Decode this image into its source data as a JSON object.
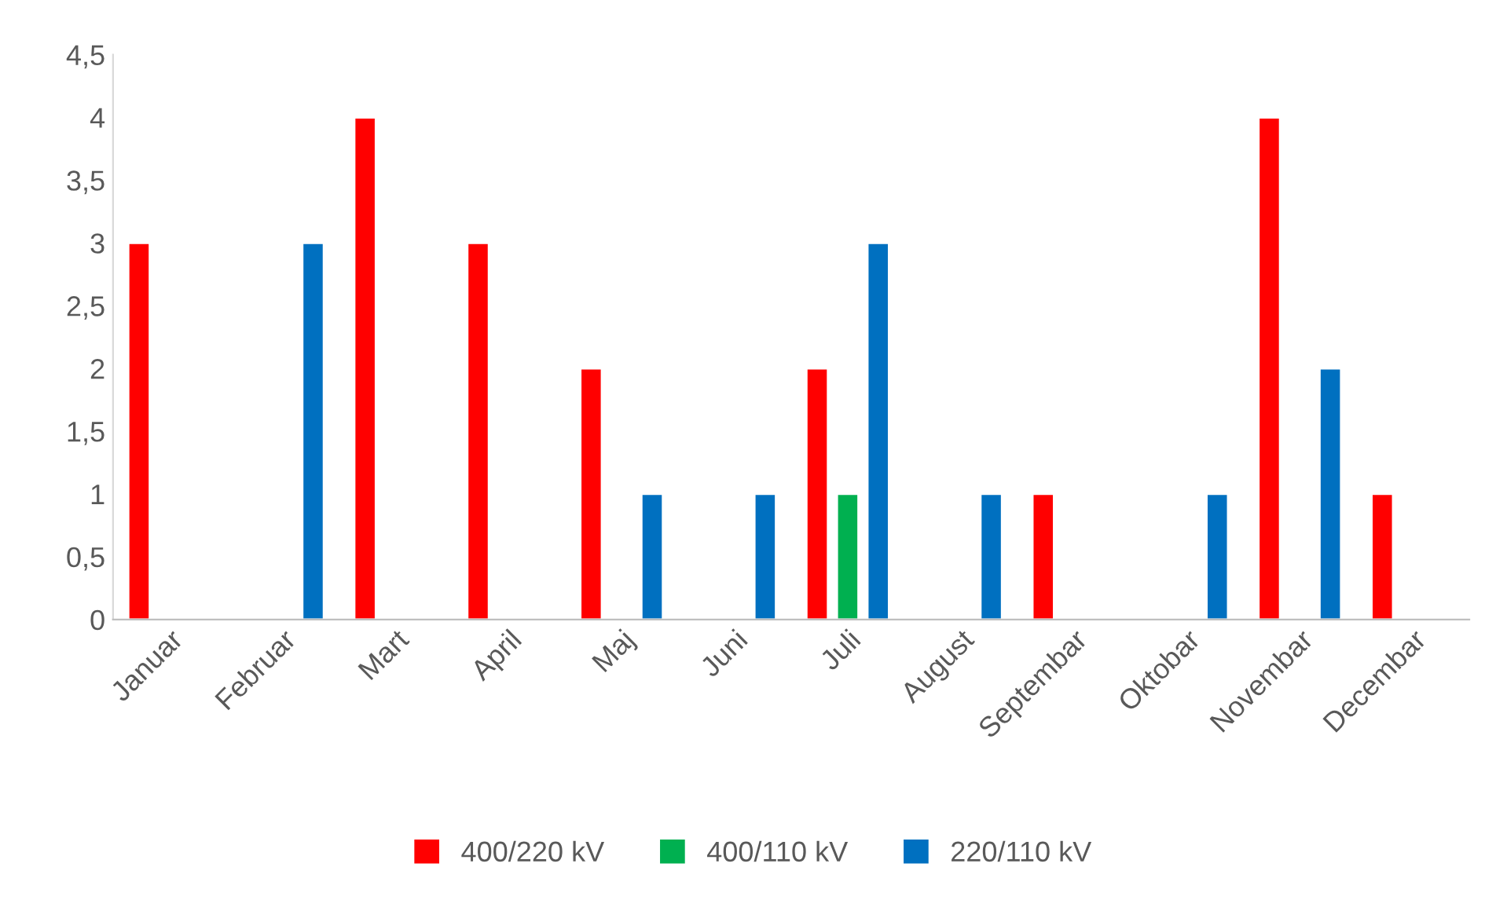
{
  "chart_data": {
    "type": "bar",
    "categories": [
      "Januar",
      "Februar",
      "Mart",
      "April",
      "Maj",
      "Juni",
      "Juli",
      "August",
      "Septembar",
      "Oktobar",
      "Novembar",
      "Decembar"
    ],
    "series": [
      {
        "name": "400/220 kV",
        "color": "#ff0000",
        "values": [
          3,
          null,
          4,
          3,
          2,
          null,
          2,
          null,
          1,
          null,
          4,
          1
        ]
      },
      {
        "name": "400/110 kV",
        "color": "#00b050",
        "values": [
          null,
          null,
          null,
          null,
          null,
          null,
          1,
          null,
          null,
          null,
          null,
          null
        ]
      },
      {
        "name": "220/110 kV",
        "color": "#0070c0",
        "values": [
          null,
          3,
          null,
          null,
          1,
          1,
          3,
          1,
          null,
          1,
          2,
          null
        ]
      }
    ],
    "ylim": [
      0,
      4.5
    ],
    "yticks": [
      0,
      {
        "value": 0.5,
        "label": "0,5"
      },
      1,
      {
        "value": 1.5,
        "label": "1,5"
      },
      2,
      {
        "value": 2.5,
        "label": "2,5"
      },
      3,
      {
        "value": 3.5,
        "label": "3,5"
      },
      4,
      {
        "value": 4.5,
        "label": "4,5"
      }
    ],
    "grid": false,
    "legend": "bottom"
  }
}
